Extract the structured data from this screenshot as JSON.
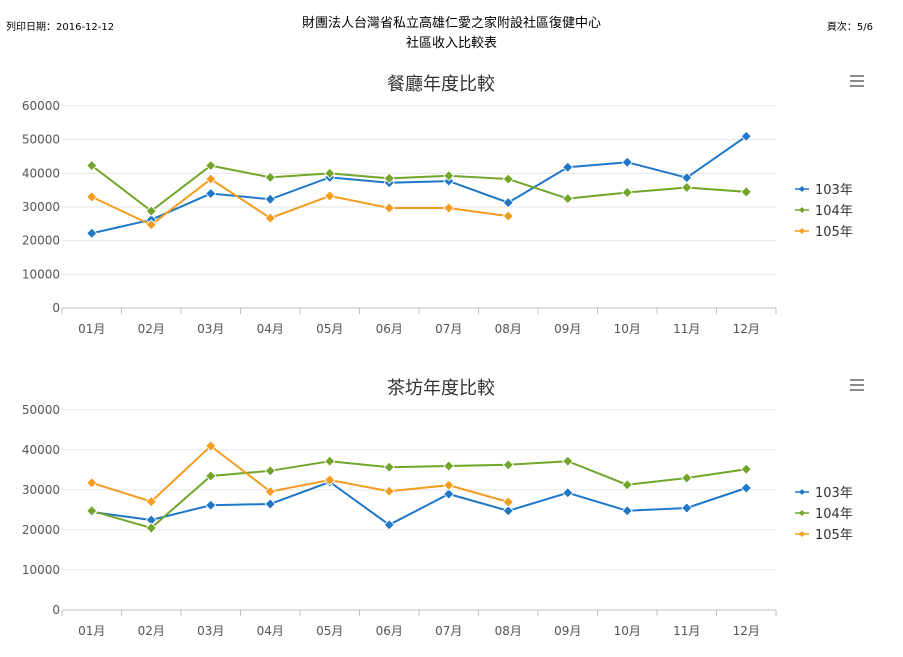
{
  "header": {
    "print_date": "列印日期：2016-12-12",
    "org_name": "財團法人台灣省私立高雄仁愛之家附設社區復健中心",
    "report_title": "社區收入比較表",
    "page": "頁次：5/6"
  },
  "colors": {
    "103年": "#1f77c8",
    "104年": "#72a52a",
    "105年": "#f39c1f"
  },
  "chart_data": [
    {
      "type": "line",
      "title": "餐廳年度比較",
      "categories": [
        "01月",
        "02月",
        "03月",
        "04月",
        "05月",
        "06月",
        "07月",
        "08月",
        "09月",
        "10月",
        "11月",
        "12月"
      ],
      "ylim": [
        0,
        60000
      ],
      "yticks": [
        0,
        10000,
        20000,
        30000,
        40000,
        50000,
        60000
      ],
      "grid": true,
      "legend": "right",
      "menu_icon": "hamburger-menu-icon",
      "series": [
        {
          "name": "103年",
          "values": [
            22200,
            26200,
            34000,
            32300,
            38800,
            37200,
            37700,
            31300,
            41800,
            43300,
            38700,
            51000
          ]
        },
        {
          "name": "104年",
          "values": [
            42300,
            28800,
            42300,
            38800,
            40000,
            38500,
            39300,
            38300,
            32500,
            34300,
            35800,
            34500
          ]
        },
        {
          "name": "105年",
          "values": [
            33000,
            24700,
            38300,
            26700,
            33300,
            29700,
            29700,
            27300,
            null,
            null,
            null,
            null
          ]
        }
      ]
    },
    {
      "type": "line",
      "title": "茶坊年度比較",
      "categories": [
        "01月",
        "02月",
        "03月",
        "04月",
        "05月",
        "06月",
        "07月",
        "08月",
        "09月",
        "10月",
        "11月",
        "12月"
      ],
      "ylim": [
        0,
        50000
      ],
      "yticks": [
        0,
        10000,
        20000,
        30000,
        40000,
        50000
      ],
      "grid": true,
      "legend": "right",
      "menu_icon": "hamburger-menu-icon",
      "series": [
        {
          "name": "103年",
          "values": [
            24500,
            22500,
            26200,
            26500,
            32000,
            21300,
            29000,
            24800,
            29300,
            24800,
            25500,
            30500
          ]
        },
        {
          "name": "104年",
          "values": [
            24800,
            20500,
            33500,
            34800,
            37200,
            35700,
            36000,
            36300,
            37200,
            31300,
            33000,
            35200
          ]
        },
        {
          "name": "105年",
          "values": [
            31800,
            27100,
            41000,
            29600,
            32500,
            29700,
            31200,
            27000,
            null,
            null,
            null,
            null
          ]
        }
      ]
    }
  ]
}
